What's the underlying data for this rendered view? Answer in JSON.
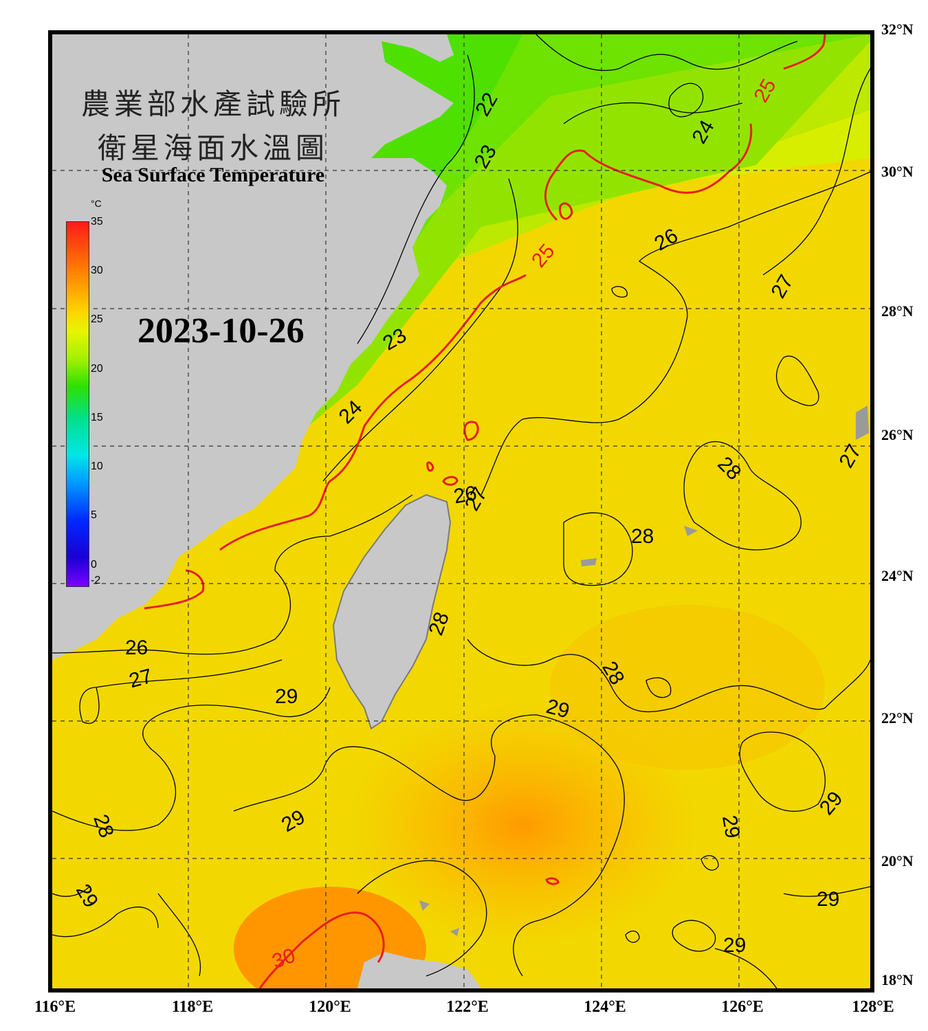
{
  "titles": {
    "zh_line1": "農業部水產試驗所",
    "zh_line2": "衛星海面水溫圖",
    "en": "Sea Surface Temperature"
  },
  "date": "2023-10-26",
  "colorbar": {
    "unit": "°C",
    "ticks": [
      "35",
      "30",
      "25",
      "20",
      "15",
      "10",
      "5",
      "0",
      "-2"
    ],
    "colors": [
      "#ff1a1a",
      "#ff8c00",
      "#ffd000",
      "#e8f500",
      "#9ef000",
      "#2ee000",
      "#00e08c",
      "#00e6e6",
      "#0096ff",
      "#0028ff",
      "#7a00ff"
    ]
  },
  "axes": {
    "lat_labels": [
      "32°N",
      "30°N",
      "28°N",
      "26°N",
      "24°N",
      "22°N",
      "20°N",
      "18°N"
    ],
    "lon_labels": [
      "116°E",
      "118°E",
      "120°E",
      "122°E",
      "124°E",
      "126°E",
      "128°E"
    ]
  },
  "contour_labels": {
    "c22": "22",
    "c23a": "23",
    "c23b": "23",
    "c24a": "24",
    "c24b": "24",
    "c25a": "25",
    "c25b": "25",
    "c26a": "26",
    "c26b": "26",
    "c26c": "26",
    "c27a": "27",
    "c27b": "27",
    "c27c": "27",
    "c27d": "27",
    "c28a": "28",
    "c28b": "28",
    "c28c": "28",
    "c28d": "28",
    "c28e": "28",
    "c29a": "29",
    "c29b": "29",
    "c29c": "29",
    "c29d": "29",
    "c29e": "29",
    "c29f": "29",
    "c29g": "29",
    "c29h": "29",
    "c30": "30"
  },
  "colors": {
    "land": "#c8c8c8",
    "highlight_contour": "#e81e1e",
    "grid": "#333333"
  }
}
